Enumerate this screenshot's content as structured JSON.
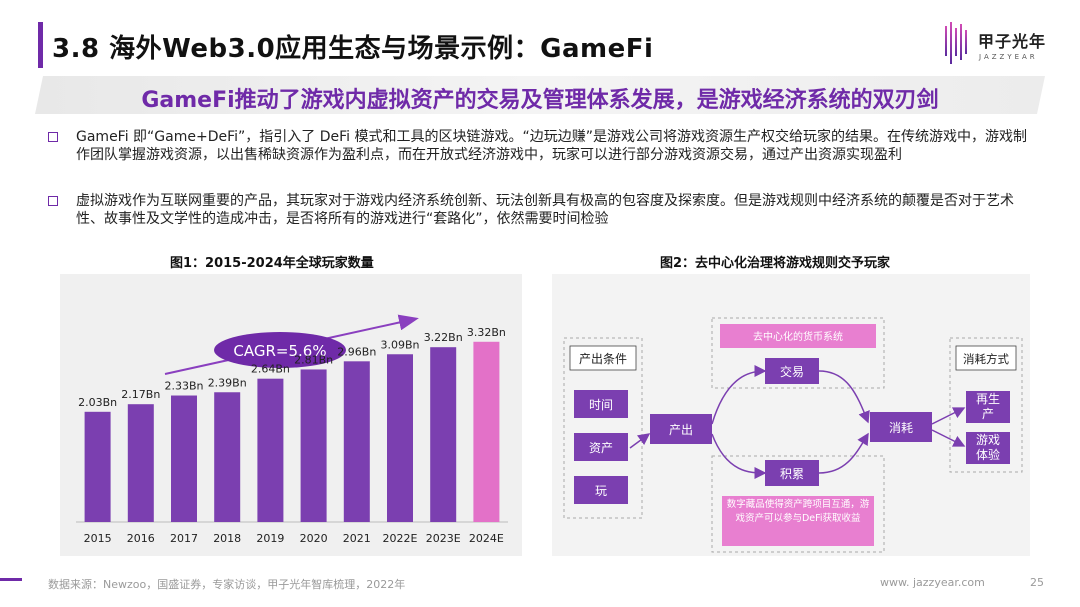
{
  "header": {
    "title": "3.8 海外Web3.0应用生态与场景示例：GameFi",
    "logo_cn": "甲子光年",
    "logo_en": "JAZZYEAR"
  },
  "headline": "GameFi推动了游戏内虚拟资产的交易及管理体系发展，是游戏经济系统的双刃剑",
  "bullets": [
    "GameFi 即“Game+DeFi”，指引入了 DeFi 模式和工具的区块链游戏。“边玩边赚”是游戏公司将游戏资源生产权交给玩家的结果。在传统游戏中，游戏制作团队掌握游戏资源，以出售稀缺资源作为盈利点，而在开放式经济游戏中，玩家可以进行部分游戏资源交易，通过产出资源实现盈利",
    "虚拟游戏作为互联网重要的产品，其玩家对于游戏内经济系统创新、玩法创新具有极高的包容度及探索度。但是游戏规则中经济系统的颠覆是否对于艺术性、故事性及文学性的造成冲击，是否将所有的游戏进行“套路化”，依然需要时间检验"
  ],
  "figure1": {
    "caption": "图1：2015-2024年全球玩家数量",
    "cagr_label": "CAGR=5.6%"
  },
  "figure2": {
    "caption": "图2：去中心化治理将游戏规则交予玩家",
    "left_title": "产出条件",
    "left_items": [
      "时间",
      "资产",
      "玩"
    ],
    "center_produce": "产出",
    "top_label": "去中心化的货币系统",
    "trade": "交易",
    "accumulate": "积累",
    "consume": "消耗",
    "right_title": "消耗方式",
    "right_items": [
      "再生产",
      "游戏体验"
    ],
    "bottom_note": "数字藏品使得资产跨项目互通，游戏资产可以参与DeFi获取收益"
  },
  "chart_data": {
    "type": "bar",
    "title": "图1：2015-2024年全球玩家数量",
    "categories": [
      "2015",
      "2016",
      "2017",
      "2018",
      "2019",
      "2020",
      "2021",
      "2022E",
      "2023E",
      "2024E"
    ],
    "values": [
      2.03,
      2.17,
      2.33,
      2.39,
      2.64,
      2.81,
      2.96,
      3.09,
      3.22,
      3.32
    ],
    "data_labels": [
      "2.03Bn",
      "2.17Bn",
      "2.33Bn",
      "2.39Bn",
      "2.64Bn",
      "2.81Bn",
      "2.96Bn",
      "3.09Bn",
      "3.22Bn",
      "3.32Bn"
    ],
    "ylim": [
      0,
      4.2
    ],
    "bar_color": "#7b3fb0",
    "highlight_color": "#e371c8",
    "grid": false,
    "annotation": "CAGR=5.6%"
  },
  "footer": {
    "source": "数据来源：Newzoo，国盛证券，专家访谈，甲子光年智库梳理，2022年",
    "website": "www. jazzyear.com",
    "page": "25"
  }
}
